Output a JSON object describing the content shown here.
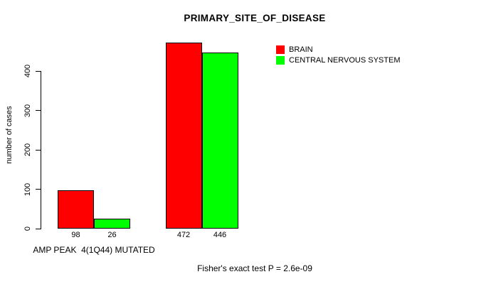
{
  "chart_data": {
    "type": "bar",
    "title": "PRIMARY_SITE_OF_DISEASE",
    "ylabel": "number of cases",
    "xlabel": "",
    "categories": [
      "AMP PEAK  4(1Q44) MUTATED",
      ""
    ],
    "series": [
      {
        "name": "BRAIN",
        "color": "#ff0000",
        "values": [
          98,
          472
        ]
      },
      {
        "name": "CENTRAL NERVOUS SYSTEM",
        "color": "#00ff00",
        "values": [
          26,
          446
        ]
      }
    ],
    "yticks": [
      0,
      100,
      200,
      300,
      400
    ],
    "ylim": [
      0,
      472
    ],
    "grid": false,
    "legend_position": "top-right",
    "bar_value_labels": [
      [
        98,
        472
      ],
      [
        26,
        446
      ]
    ],
    "caption": "Fisher's exact test P = 2.6e-09"
  },
  "colors": {
    "bar_brain": "#ff0000",
    "bar_central_nervous_system": "#00ff00",
    "bar_border": "#000000",
    "background": "#ffffff",
    "text": "#000000"
  }
}
